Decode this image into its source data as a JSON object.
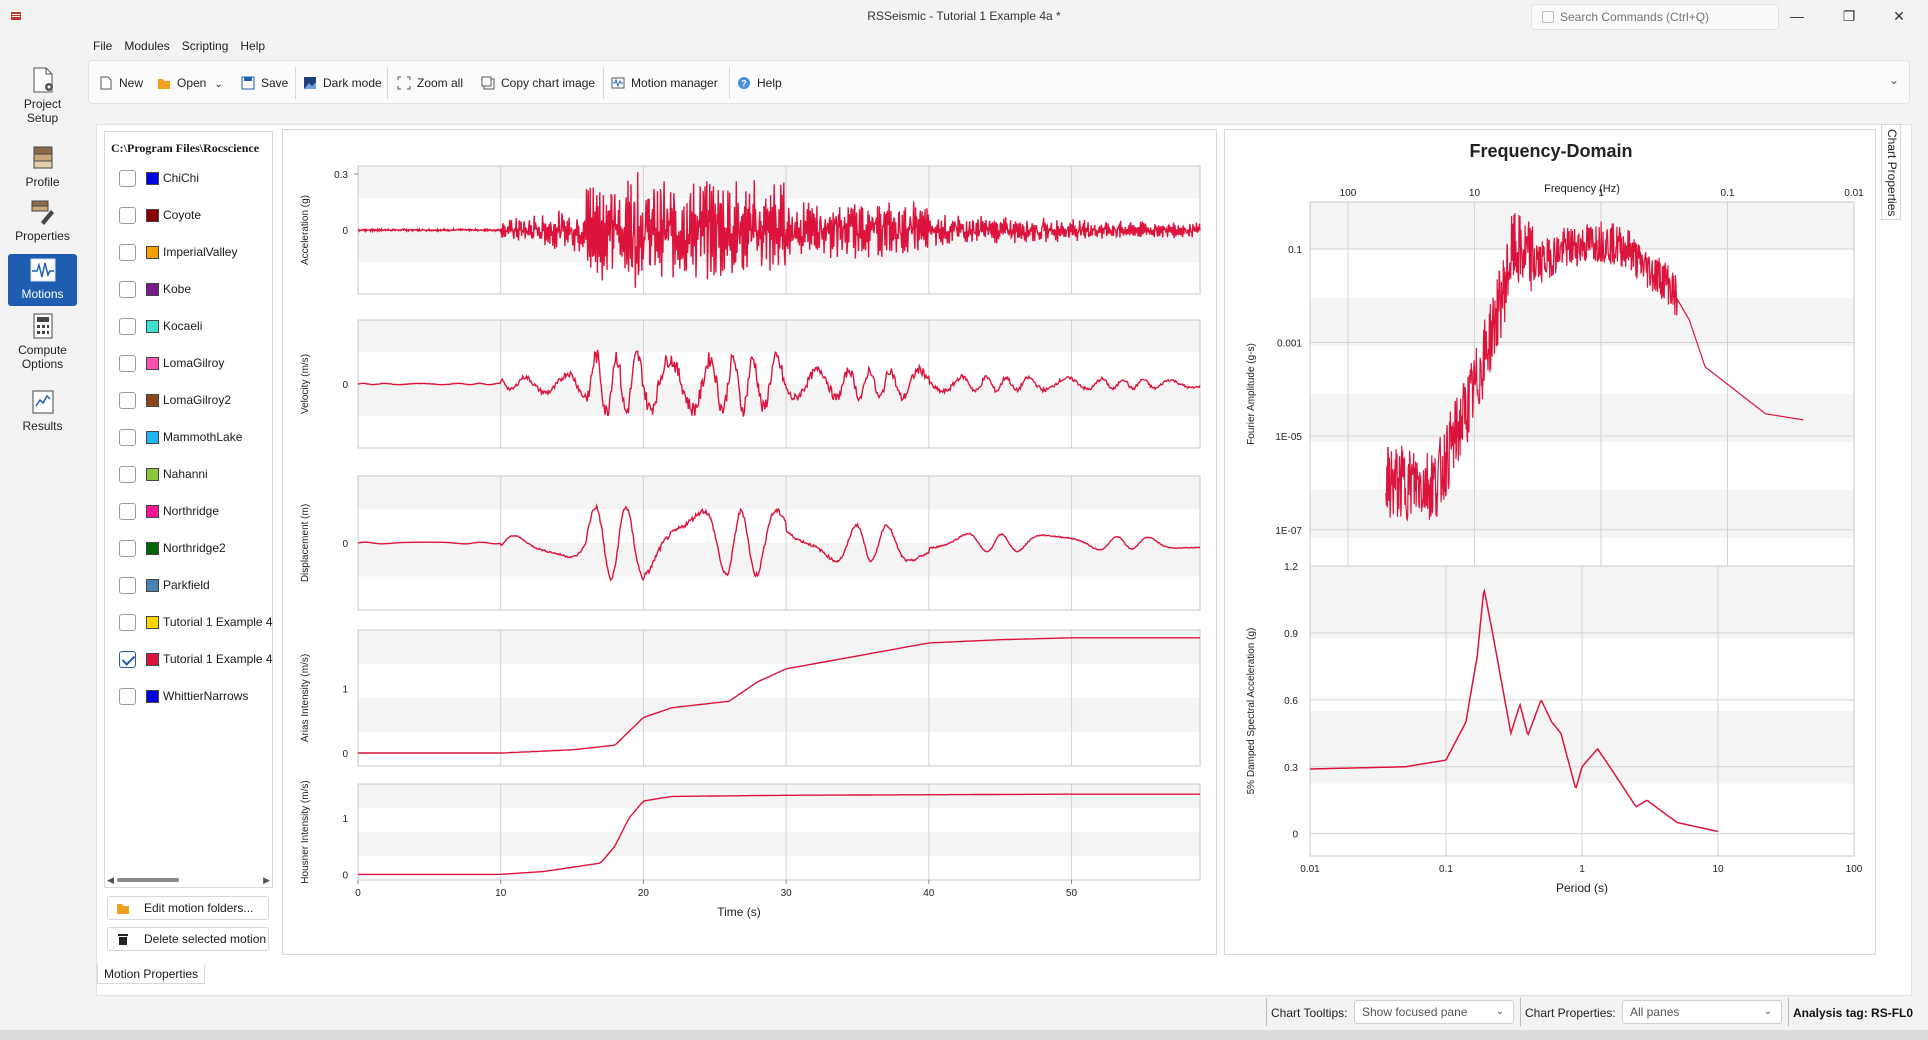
{
  "window": {
    "title": "RSSeismic - Tutorial 1 Example 4a *",
    "search_placeholder": "Search Commands (Ctrl+Q)",
    "minimize": "—",
    "maximize": "❐",
    "close": "✕"
  },
  "nav": [
    {
      "label1": "Project",
      "label2": "Setup",
      "icon": "project-setup-icon"
    },
    {
      "label1": "Profile",
      "label2": "",
      "icon": "profile-icon"
    },
    {
      "label1": "Properties",
      "label2": "",
      "icon": "properties-icon"
    },
    {
      "label1": "Motions",
      "label2": "",
      "icon": "motions-icon",
      "active": true
    },
    {
      "label1": "Compute",
      "label2": "Options",
      "icon": "compute-options-icon"
    },
    {
      "label1": "Results",
      "label2": "",
      "icon": "results-icon"
    }
  ],
  "menu": [
    "File",
    "Modules",
    "Scripting",
    "Help"
  ],
  "toolbar": {
    "new": "New",
    "open": "Open",
    "save": "Save",
    "dark_mode": "Dark mode",
    "zoom_all": "Zoom all",
    "copy_chart_image": "Copy chart image",
    "motion_manager": "Motion manager",
    "help": "Help"
  },
  "motions": {
    "path": "C:\\Program Files\\Rocscience",
    "items": [
      {
        "name": "ChiChi",
        "color": "#0000e6",
        "checked": false
      },
      {
        "name": "Coyote",
        "color": "#8b0000",
        "checked": false
      },
      {
        "name": "ImperialValley",
        "color": "#f5a000",
        "checked": false
      },
      {
        "name": "Kobe",
        "color": "#7a1a8a",
        "checked": false
      },
      {
        "name": "Kocaeli",
        "color": "#40e0d0",
        "checked": false
      },
      {
        "name": "LomaGilroy",
        "color": "#ff4fb0",
        "checked": false
      },
      {
        "name": "LomaGilroy2",
        "color": "#8b4513",
        "checked": false
      },
      {
        "name": "MammothLake",
        "color": "#1eb4f0",
        "checked": false
      },
      {
        "name": "Nahanni",
        "color": "#8cc63f",
        "checked": false
      },
      {
        "name": "Northridge",
        "color": "#ff1493",
        "checked": false
      },
      {
        "name": "Northridge2",
        "color": "#006400",
        "checked": false
      },
      {
        "name": "Parkfield",
        "color": "#4682b4",
        "checked": false
      },
      {
        "name": "Tutorial 1 Example 4",
        "color": "#ffd700",
        "checked": false
      },
      {
        "name": "Tutorial 1 Example 4",
        "color": "#dc143c",
        "checked": true
      },
      {
        "name": "WhittierNarrows",
        "color": "#0000e6",
        "checked": false
      }
    ],
    "edit_button": "Edit motion folders...",
    "delete_button": "Delete selected motion",
    "props_tab": "Motion Properties"
  },
  "time_domain": {
    "xlabel": "Time (s)",
    "xticks": [
      "0",
      "10",
      "20",
      "30",
      "40",
      "50"
    ],
    "panes": [
      {
        "ylabel": "Acceleration (g)",
        "yticks": [
          "0.3",
          "0"
        ]
      },
      {
        "ylabel": "Velocity (m/s)",
        "yticks": [
          "0"
        ]
      },
      {
        "ylabel": "Displacement (m)",
        "yticks": [
          "0"
        ]
      },
      {
        "ylabel": "Arias Intensity (m/s)",
        "yticks": [
          "1",
          "0"
        ]
      },
      {
        "ylabel": "Housner Intensity (m/s)",
        "yticks": [
          "1",
          "0"
        ]
      }
    ]
  },
  "frequency_domain": {
    "title": "Frequency-Domain",
    "fourier": {
      "xlabel": "Frequency (Hz)",
      "ylabel": "Fourier Amplitude (g-s)",
      "xticks": [
        "100",
        "10",
        "1",
        "0.1",
        "0.01"
      ],
      "yticks": [
        "0.1",
        "0.001",
        "1E-05",
        "1E-07"
      ]
    },
    "spectrum": {
      "xlabel": "Period (s)",
      "ylabel": "5% Damped Spectral Acceleration (g)",
      "xticks": [
        "0.01",
        "0.1",
        "1",
        "10",
        "100"
      ],
      "yticks": [
        "1.2",
        "0.9",
        "0.6",
        "0.3",
        "0"
      ]
    }
  },
  "chart_data": [
    {
      "type": "line",
      "title": "",
      "xlabel": "Time (s)",
      "ylabel": "Arias Intensity (m/s)",
      "series": [
        {
          "name": "Tutorial 1 Example 4",
          "x": [
            0,
            10,
            15,
            18,
            20,
            22,
            26,
            28,
            30,
            35,
            40,
            45,
            50,
            59
          ],
          "values": [
            0,
            0,
            0.05,
            0.12,
            0.55,
            0.7,
            0.8,
            1.1,
            1.3,
            1.5,
            1.7,
            1.75,
            1.78,
            1.78
          ]
        }
      ],
      "xlim": [
        0,
        59
      ],
      "ylim": [
        -0.2,
        1.9
      ],
      "color": "#dc143c"
    },
    {
      "type": "line",
      "title": "",
      "xlabel": "Time (s)",
      "ylabel": "Housner Intensity (m/s)",
      "series": [
        {
          "name": "Tutorial 1 Example 4",
          "x": [
            0,
            10,
            13,
            17,
            18,
            19,
            20,
            22,
            30,
            40,
            50,
            59
          ],
          "values": [
            0,
            0,
            0.05,
            0.2,
            0.5,
            1.0,
            1.3,
            1.38,
            1.4,
            1.41,
            1.42,
            1.42
          ]
        }
      ],
      "xlim": [
        0,
        59
      ],
      "ylim": [
        -0.1,
        1.6
      ],
      "color": "#dc143c"
    },
    {
      "type": "line",
      "title": "",
      "xlabel": "Period (s)",
      "ylabel": "5% Damped Spectral Acceleration (g)",
      "series": [
        {
          "name": "Tutorial 1 Example 4",
          "x": [
            0.01,
            0.05,
            0.1,
            0.14,
            0.17,
            0.19,
            0.22,
            0.3,
            0.35,
            0.4,
            0.5,
            0.6,
            0.7,
            0.9,
            1.0,
            1.3,
            1.6,
            2.5,
            3.0,
            5.0,
            10.0
          ],
          "values": [
            0.29,
            0.3,
            0.33,
            0.5,
            0.8,
            1.1,
            0.9,
            0.45,
            0.58,
            0.44,
            0.6,
            0.5,
            0.45,
            0.2,
            0.3,
            0.38,
            0.3,
            0.12,
            0.15,
            0.05,
            0.01
          ]
        }
      ],
      "xlim": [
        0.01,
        100
      ],
      "ylim": [
        -0.1,
        1.2
      ],
      "xscale": "log",
      "color": "#dc143c"
    },
    {
      "type": "line",
      "title": "",
      "xlabel": "Frequency (Hz)",
      "ylabel": "Fourier Amplitude (g-s)",
      "series": [
        {
          "name": "Tutorial 1 Example 4",
          "x": [
            50,
            30,
            20,
            10,
            6,
            5,
            3,
            2,
            1,
            0.6,
            0.5,
            0.3,
            0.2,
            0.15,
            0.05,
            0.01
          ],
          "values": [
            1e-06,
            1e-06,
            1e-06,
            0.0001,
            0.01,
            0.1,
            0.05,
            0.1,
            0.15,
            0.1,
            0.05,
            0.02,
            0.003,
            0.0003,
            3e-05,
            1.5e-05
          ]
        }
      ],
      "xlim": [
        100,
        0.01
      ],
      "ylim": [
        1e-08,
        1
      ],
      "xscale": "log",
      "yscale": "log",
      "color": "#dc143c"
    }
  ],
  "status": {
    "tooltips_label": "Chart Tooltips:",
    "tooltips_value": "Show focused pane",
    "props_label": "Chart Properties:",
    "props_value": "All panes",
    "analysis_tag": "Analysis tag: RS-FL0"
  },
  "chart_props_tab": "Chart Properties"
}
